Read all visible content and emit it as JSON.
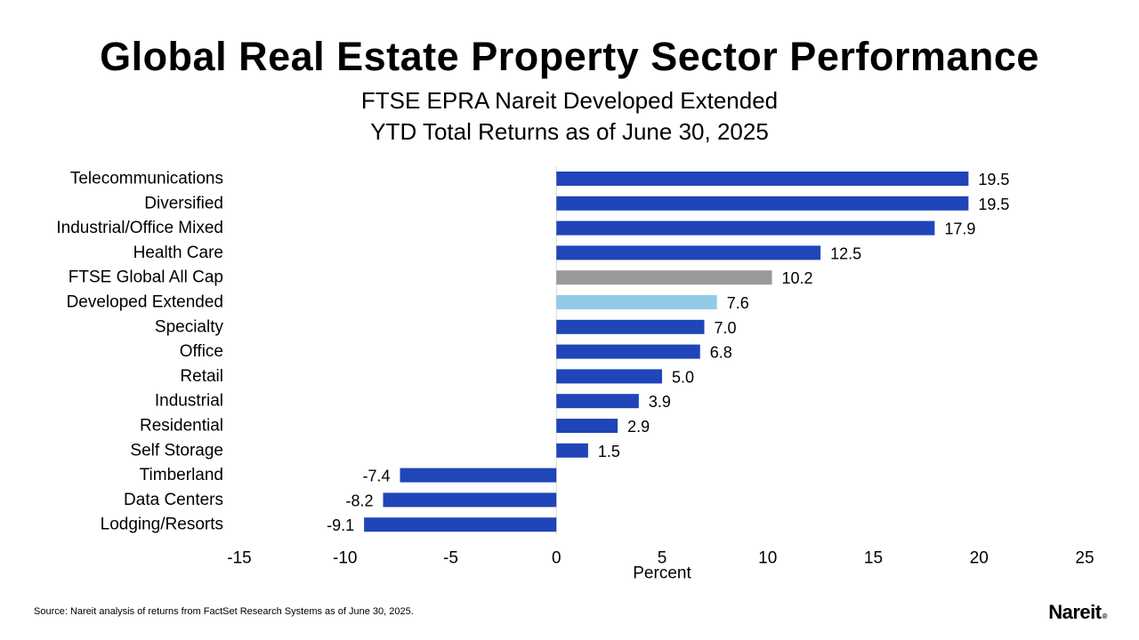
{
  "chart_data": {
    "type": "bar",
    "orientation": "horizontal",
    "title": "Global Real Estate Property Sector Performance",
    "subtitle_lines": [
      "FTSE EPRA Nareit Developed Extended",
      "YTD Total Returns as of June 30, 2025"
    ],
    "xlabel": "Percent",
    "ylabel": "",
    "xlim": [
      -15,
      25
    ],
    "xticks": [
      -15,
      -10,
      -5,
      0,
      5,
      10,
      15,
      20,
      25
    ],
    "grid": false,
    "categories": [
      "Telecommunications",
      "Diversified",
      "Industrial/Office Mixed",
      "Health Care",
      "FTSE Global All Cap",
      "Developed Extended",
      "Specialty",
      "Office",
      "Retail",
      "Industrial",
      "Residential",
      "Self Storage",
      "Timberland",
      "Data Centers",
      "Lodging/Resorts"
    ],
    "values": [
      19.5,
      19.5,
      17.9,
      12.5,
      10.2,
      7.6,
      7.0,
      6.8,
      5.0,
      3.9,
      2.9,
      1.5,
      -7.4,
      -8.2,
      -9.1
    ],
    "value_labels": [
      "19.5",
      "19.5",
      "17.9",
      "12.5",
      "10.2",
      "7.6",
      "7.0",
      "6.8",
      "5.0",
      "3.9",
      "2.9",
      "1.5",
      "-7.4",
      "-8.2",
      "-9.1"
    ],
    "bar_colors": [
      "#1f45b8",
      "#1f45b8",
      "#1f45b8",
      "#1f45b8",
      "#999999",
      "#92cbe8",
      "#1f45b8",
      "#1f45b8",
      "#1f45b8",
      "#1f45b8",
      "#1f45b8",
      "#1f45b8",
      "#1f45b8",
      "#1f45b8",
      "#1f45b8"
    ]
  },
  "footer": {
    "source": "Source: Nareit analysis of returns from FactSet Research Systems as of June 30, 2025.",
    "logo_text": "Nareit",
    "logo_mark": "®"
  }
}
